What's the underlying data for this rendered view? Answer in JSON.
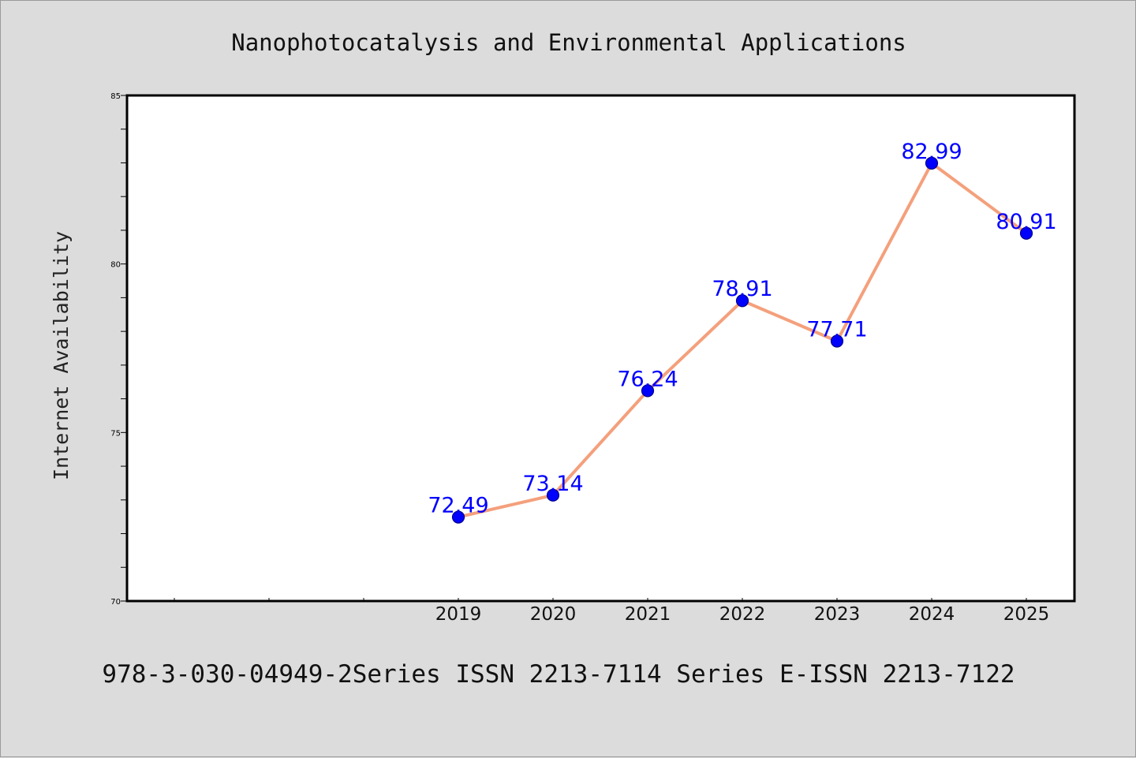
{
  "chart_data": {
    "type": "line",
    "title": "Nanophotocatalysis and Environmental Applications",
    "xlabel": "",
    "ylabel": "Internet Availability",
    "categories": [
      "2019",
      "2020",
      "2021",
      "2022",
      "2023",
      "2024",
      "2025"
    ],
    "series": [
      {
        "values": [
          72.49,
          73.14,
          76.24,
          78.91,
          77.71,
          82.99,
          80.91
        ]
      }
    ],
    "data_labels": [
      "72.49",
      "73.14",
      "76.24",
      "78.91",
      "77.71",
      "82.99",
      "80.91"
    ],
    "ylim": [
      70,
      85
    ],
    "y_ticks": [
      "70",
      "75",
      "80",
      "85"
    ],
    "y_minor_step": 1,
    "x_blank_slots_before": 3,
    "grid": false,
    "footer": "978-3-030-04949-2Series ISSN 2213-7114 Series E-ISSN 2213-7122",
    "colors": {
      "line": "#f4a07c",
      "marker": "#0000ff",
      "marker_edge": "#00008b",
      "data_label": "#0000ff",
      "background": "#dcdcdc",
      "plot_background": "#ffffff"
    }
  }
}
